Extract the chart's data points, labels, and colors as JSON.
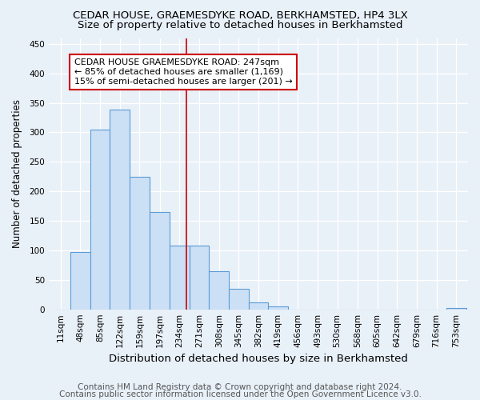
{
  "title": "CEDAR HOUSE, GRAEMESDYKE ROAD, BERKHAMSTED, HP4 3LX",
  "subtitle": "Size of property relative to detached houses in Berkhamsted",
  "xlabel": "Distribution of detached houses by size in Berkhamsted",
  "ylabel": "Number of detached properties",
  "bin_labels": [
    "11sqm",
    "48sqm",
    "85sqm",
    "122sqm",
    "159sqm",
    "197sqm",
    "234sqm",
    "271sqm",
    "308sqm",
    "345sqm",
    "382sqm",
    "419sqm",
    "456sqm",
    "493sqm",
    "530sqm",
    "568sqm",
    "605sqm",
    "642sqm",
    "679sqm",
    "716sqm",
    "753sqm"
  ],
  "bin_edges": [
    11,
    48,
    85,
    122,
    159,
    197,
    234,
    271,
    308,
    345,
    382,
    419,
    456,
    493,
    530,
    568,
    605,
    642,
    679,
    716,
    753
  ],
  "bar_heights": [
    0,
    97,
    305,
    338,
    225,
    165,
    108,
    108,
    65,
    35,
    12,
    5,
    0,
    0,
    0,
    0,
    0,
    0,
    0,
    0,
    2
  ],
  "bar_color": "#cce0f5",
  "bar_edge_color": "#5b9bd5",
  "ylim": [
    0,
    460
  ],
  "yticks": [
    0,
    50,
    100,
    150,
    200,
    250,
    300,
    350,
    400,
    450
  ],
  "property_sqm": 247,
  "vline_color": "#cc0000",
  "annotation_line1": "CEDAR HOUSE GRAEMESDYKE ROAD: 247sqm",
  "annotation_line2": "← 85% of detached houses are smaller (1,169)",
  "annotation_line3": "15% of semi-detached houses are larger (201) →",
  "annotation_box_facecolor": "#ffffff",
  "annotation_box_edge": "#cc0000",
  "footer_line1": "Contains HM Land Registry data © Crown copyright and database right 2024.",
  "footer_line2": "Contains public sector information licensed under the Open Government Licence v3.0.",
  "bg_color": "#e8f0f8",
  "grid_color": "#ffffff",
  "title_fontsize": 9.5,
  "subtitle_fontsize": 9.5,
  "xlabel_fontsize": 9.5,
  "ylabel_fontsize": 8.5,
  "tick_fontsize": 7.5,
  "annotation_fontsize": 8,
  "footer_fontsize": 7.5
}
